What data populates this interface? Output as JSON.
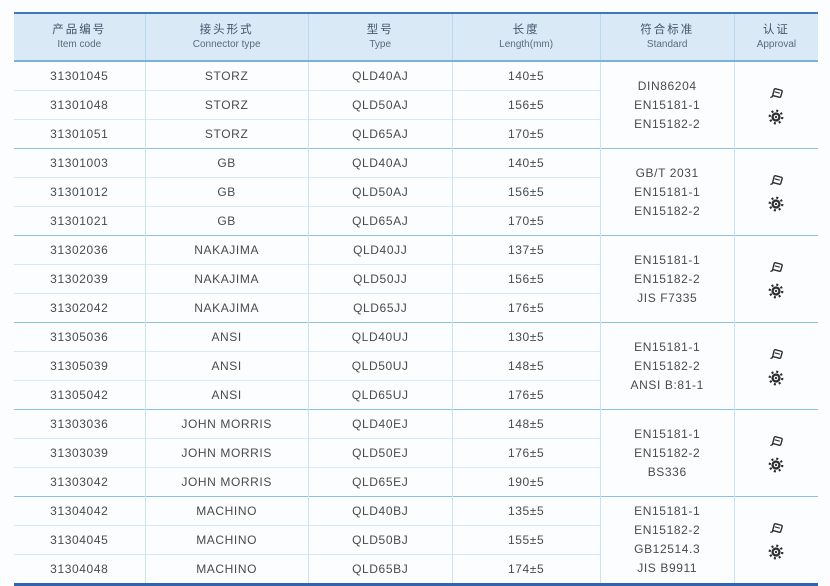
{
  "header": {
    "columns": [
      {
        "zh": "产品编号",
        "en": "Item code"
      },
      {
        "zh": "接头形式",
        "en": "Connector type"
      },
      {
        "zh": "型号",
        "en": "Type"
      },
      {
        "zh": "长度",
        "en": "Length(mm)"
      },
      {
        "zh": "符合标准",
        "en": "Standard"
      },
      {
        "zh": "认证",
        "en": "Approval"
      }
    ]
  },
  "approval_icons": [
    "certificate-flag-icon",
    "gear-badge-icon"
  ],
  "colors": {
    "header_bg": "#d9e9f6",
    "top_border": "#3b7abf",
    "bottom_border": "#2b66ae",
    "row_line": "#d6e9f6",
    "group_line": "#8cc1e2",
    "column_line": "#cae2f2",
    "text": "#4a4a4a",
    "icon": "#2e2e2e"
  },
  "table": {
    "groups": [
      {
        "rows": [
          {
            "code": "31301045",
            "connector": "STORZ",
            "type": "QLD40AJ",
            "length": "140±5"
          },
          {
            "code": "31301048",
            "connector": "STORZ",
            "type": "QLD50AJ",
            "length": "156±5"
          },
          {
            "code": "31301051",
            "connector": "STORZ",
            "type": "QLD65AJ",
            "length": "170±5"
          }
        ],
        "standards": [
          "DIN86204",
          "EN15181-1",
          "EN15182-2"
        ]
      },
      {
        "rows": [
          {
            "code": "31301003",
            "connector": "GB",
            "type": "QLD40AJ",
            "length": "140±5"
          },
          {
            "code": "31301012",
            "connector": "GB",
            "type": "QLD50AJ",
            "length": "156±5"
          },
          {
            "code": "31301021",
            "connector": "GB",
            "type": "QLD65AJ",
            "length": "170±5"
          }
        ],
        "standards": [
          "GB/T 2031",
          "EN15181-1",
          "EN15182-2"
        ]
      },
      {
        "rows": [
          {
            "code": "31302036",
            "connector": "NAKAJIMA",
            "type": "QLD40JJ",
            "length": "137±5"
          },
          {
            "code": "31302039",
            "connector": "NAKAJIMA",
            "type": "QLD50JJ",
            "length": "156±5"
          },
          {
            "code": "31302042",
            "connector": "NAKAJIMA",
            "type": "QLD65JJ",
            "length": "176±5"
          }
        ],
        "standards": [
          "EN15181-1",
          "EN15182-2",
          "JIS F7335"
        ]
      },
      {
        "rows": [
          {
            "code": "31305036",
            "connector": "ANSI",
            "type": "QLD40UJ",
            "length": "130±5"
          },
          {
            "code": "31305039",
            "connector": "ANSI",
            "type": "QLD50UJ",
            "length": "148±5"
          },
          {
            "code": "31305042",
            "connector": "ANSI",
            "type": "QLD65UJ",
            "length": "176±5"
          }
        ],
        "standards": [
          "EN15181-1",
          "EN15182-2",
          "ANSI B:81-1"
        ]
      },
      {
        "rows": [
          {
            "code": "31303036",
            "connector": "JOHN MORRIS",
            "type": "QLD40EJ",
            "length": "148±5"
          },
          {
            "code": "31303039",
            "connector": "JOHN MORRIS",
            "type": "QLD50EJ",
            "length": "176±5"
          },
          {
            "code": "31303042",
            "connector": "JOHN MORRIS",
            "type": "QLD65EJ",
            "length": "190±5"
          }
        ],
        "standards": [
          "EN15181-1",
          "EN15182-2",
          "BS336"
        ]
      },
      {
        "rows": [
          {
            "code": "31304042",
            "connector": "MACHINO",
            "type": "QLD40BJ",
            "length": "135±5"
          },
          {
            "code": "31304045",
            "connector": "MACHINO",
            "type": "QLD50BJ",
            "length": "155±5"
          },
          {
            "code": "31304048",
            "connector": "MACHINO",
            "type": "QLD65BJ",
            "length": "174±5"
          }
        ],
        "standards": [
          "EN15181-1",
          "EN15182-2",
          "GB12514.3",
          "JIS B9911"
        ]
      }
    ]
  }
}
